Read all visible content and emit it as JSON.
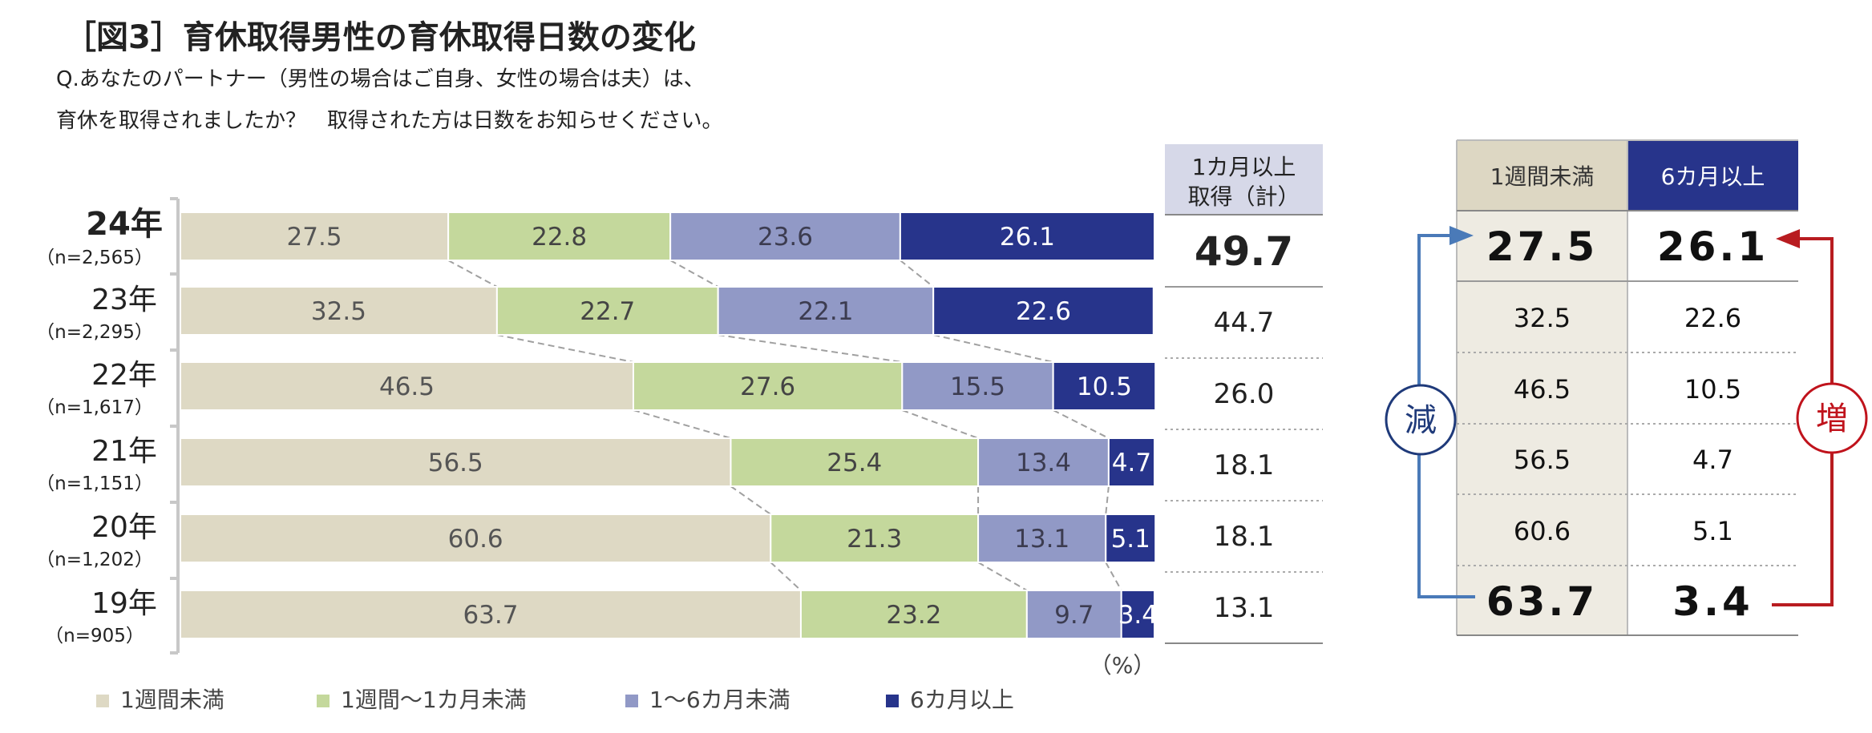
{
  "title": "［図3］育休取得男性の育休取得日数の変化",
  "question": {
    "line1": "Q.あなたのパートナー（男性の場合はご自身、女性の場合は夫）は、",
    "line2": "育休を取得されましたか？　取得された方は日数をお知らせください。"
  },
  "colors": {
    "under_1week": "#ded9c4",
    "week_to_month": "#c4d89c",
    "month_to_6months": "#9199c6",
    "over_6months": "#27348b",
    "decrease": "#1f3a7a",
    "increase": "#c0131c",
    "decrease_arrow": "#4a7ab8",
    "increase_arrow": "#b81c20"
  },
  "chart_data": [
    {
      "type": "bar",
      "orientation": "horizontal",
      "stacked": true,
      "percent_unit_label": "（%）",
      "categories": [
        {
          "label": "24年",
          "n": "（n=2,565）",
          "emphasis": true
        },
        {
          "label": "23年",
          "n": "（n=2,295）"
        },
        {
          "label": "22年",
          "n": "（n=1,617）"
        },
        {
          "label": "21年",
          "n": "（n=1,151）"
        },
        {
          "label": "20年",
          "n": "（n=1,202）"
        },
        {
          "label": "19年",
          "n": "（n=905）"
        }
      ],
      "series": [
        {
          "name": "1週間未満",
          "values": [
            27.5,
            32.5,
            46.5,
            56.5,
            60.6,
            63.7
          ]
        },
        {
          "name": "1週間～1カ月未満",
          "values": [
            22.8,
            22.7,
            27.6,
            25.4,
            21.3,
            23.2
          ]
        },
        {
          "name": "1～6カ月未満",
          "values": [
            23.6,
            22.1,
            15.5,
            13.4,
            13.1,
            9.7
          ]
        },
        {
          "name": "6カ月以上",
          "values": [
            26.1,
            22.6,
            10.5,
            4.7,
            5.1,
            3.4
          ]
        }
      ],
      "labels_shown": [
        [
          "27.5",
          "22.8",
          "23.6",
          "26.1"
        ],
        [
          "32.5",
          "22.7",
          "22.1",
          "22.6"
        ],
        [
          "46.5",
          "27.6",
          "15.5",
          "10.5"
        ],
        [
          "56.5",
          "25.4",
          "13.4",
          "4.7"
        ],
        [
          "60.6",
          "21.3",
          "13.1",
          "5.1"
        ],
        [
          "63.7",
          "23.2",
          "9.7",
          "3.4"
        ]
      ],
      "legend_position": "bottom",
      "xlim": [
        0,
        100
      ],
      "connector_lines": "dashed"
    },
    {
      "type": "table",
      "header_line1": "1カ月以上",
      "header_line2": "取得（計）",
      "values": [
        "49.7",
        "44.7",
        "26.0",
        "18.1",
        "18.1",
        "13.1"
      ]
    },
    {
      "type": "table",
      "columns": [
        "1週間未満",
        "6カ月以上"
      ],
      "rows": [
        [
          "27.5",
          "26.1"
        ],
        [
          "32.5",
          "22.6"
        ],
        [
          "46.5",
          "10.5"
        ],
        [
          "56.5",
          "4.7"
        ],
        [
          "60.6",
          "5.1"
        ],
        [
          "63.7",
          "3.4"
        ]
      ],
      "left_arrow_label": "減",
      "right_arrow_label": "増"
    }
  ]
}
